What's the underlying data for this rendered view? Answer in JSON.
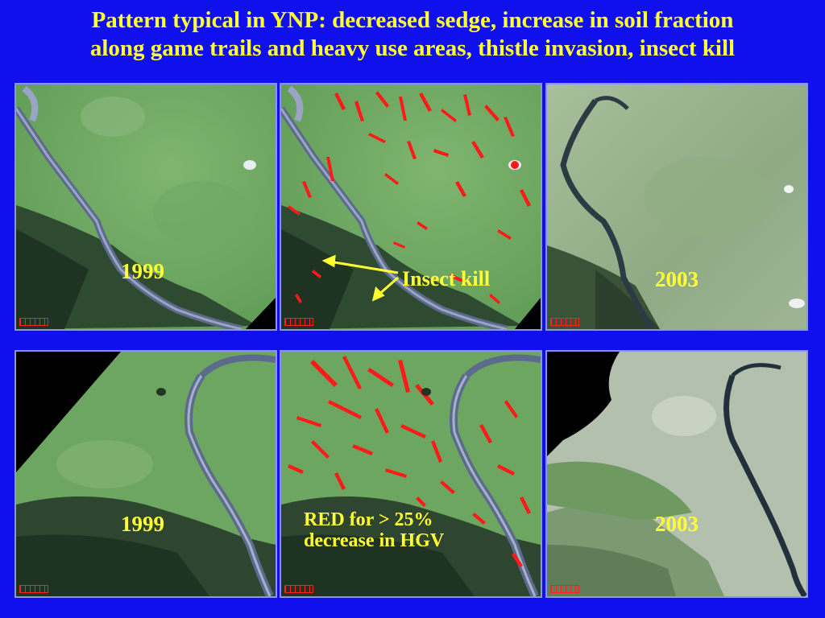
{
  "slide": {
    "title_line1": "Pattern typical in YNP: decreased sedge, increase in soil fraction",
    "title_line2": "along game trails and heavy use areas, thistle invasion, insect kill"
  },
  "panels": {
    "top_left_year": "1999",
    "top_middle_annotation": "Insect kill",
    "top_right_year": "2003",
    "bottom_left_year": "1999",
    "bottom_middle_line1": "RED for > 25%",
    "bottom_middle_line2": "decrease in HGV",
    "bottom_right_year": "2003"
  },
  "colors": {
    "background": "#1010ee",
    "text": "#ffff33",
    "change_highlight": "#ff1a1a",
    "panel_border": "#8b93ff"
  }
}
